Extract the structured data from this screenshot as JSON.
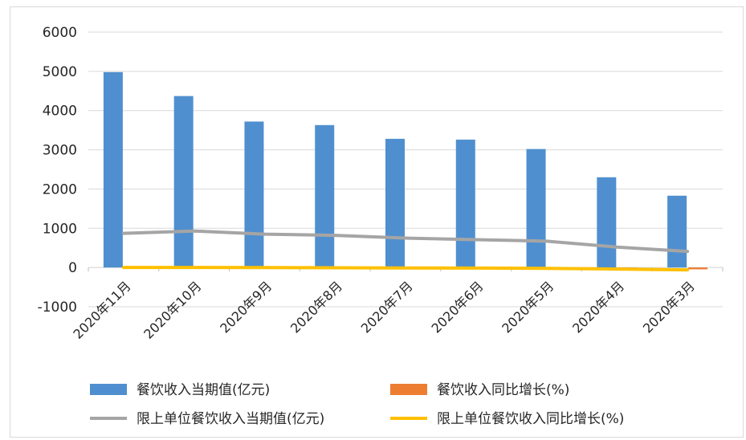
{
  "chart_data": {
    "type": "bar",
    "categories": [
      "2020年11月",
      "2020年10月",
      "2020年9月",
      "2020年8月",
      "2020年7月",
      "2020年6月",
      "2020年5月",
      "2020年4月",
      "2020年3月"
    ],
    "series": [
      {
        "name": "餐饮收入当期值(亿元)",
        "kind": "bar",
        "color": "#4f8fcf",
        "values": [
          4980,
          4370,
          3720,
          3630,
          3280,
          3260,
          3020,
          2300,
          1830
        ]
      },
      {
        "name": "餐饮收入同比增长(%)",
        "kind": "bar",
        "color": "#ed7d31",
        "values": [
          -0.6,
          -0.6,
          -2.9,
          -7,
          -11,
          -15.2,
          -18.9,
          -31.1,
          -46.8
        ]
      },
      {
        "name": "限上单位餐饮收入当期值(亿元)",
        "kind": "line",
        "color": "#a5a5a5",
        "values": [
          870,
          930,
          850,
          820,
          750,
          710,
          670,
          520,
          410
        ]
      },
      {
        "name": "限上单位餐饮收入同比增长(%)",
        "kind": "line",
        "color": "#ffc000",
        "values": [
          1.5,
          1,
          -1.6,
          -6.4,
          -11.2,
          -15.6,
          -22,
          -39.6,
          -59.8
        ]
      }
    ],
    "y_ticks": [
      "6000",
      "5000",
      "4000",
      "3000",
      "2000",
      "1000",
      "0",
      "-1000"
    ],
    "ylim": [
      -1000,
      6000
    ],
    "grid": true,
    "legend_position": "bottom",
    "title": "",
    "xlabel": "",
    "ylabel": ""
  }
}
